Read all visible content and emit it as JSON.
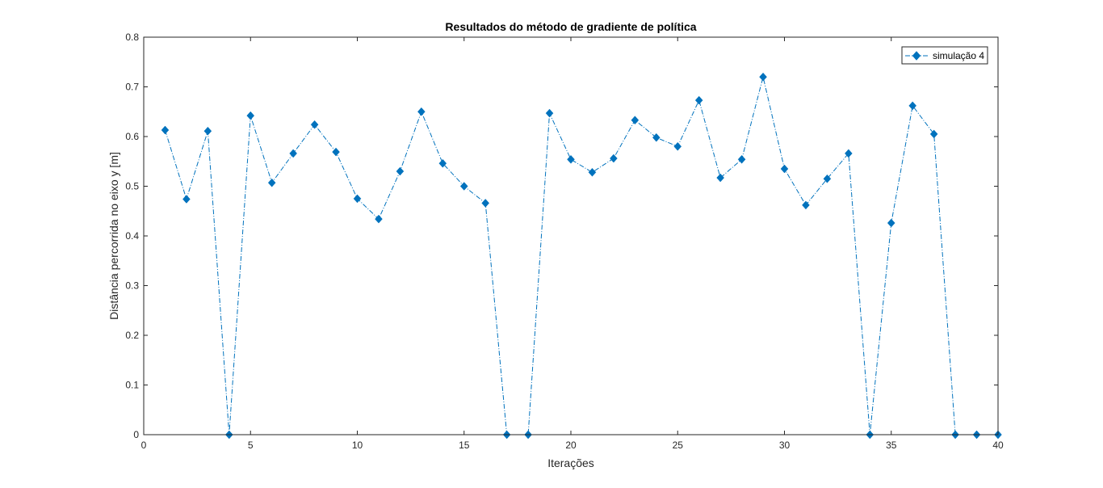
{
  "chart_data": {
    "type": "line",
    "title": "Resultados do método de gradiente de política",
    "xlabel": "Iterações",
    "ylabel": "Distância percorrida no eixo y [m]",
    "xlim": [
      0,
      40
    ],
    "ylim": [
      0,
      0.8
    ],
    "xticks": [
      0,
      5,
      10,
      15,
      20,
      25,
      30,
      35,
      40
    ],
    "yticks": [
      0,
      0.1,
      0.2,
      0.3,
      0.4,
      0.5,
      0.6,
      0.7,
      0.8
    ],
    "xtick_labels": [
      "0",
      "5",
      "10",
      "15",
      "20",
      "25",
      "30",
      "35",
      "40"
    ],
    "ytick_labels": [
      "0",
      "0.1",
      "0.2",
      "0.3",
      "0.4",
      "0.5",
      "0.6",
      "0.7",
      "0.8"
    ],
    "grid": false,
    "legend_position": "top-right",
    "series": [
      {
        "name": "simulação 4",
        "color": "#0072BD",
        "line_style": "dash-dot",
        "marker": "diamond",
        "x": [
          1,
          2,
          3,
          4,
          5,
          6,
          7,
          8,
          9,
          10,
          11,
          12,
          13,
          14,
          15,
          16,
          17,
          18,
          19,
          20,
          21,
          22,
          23,
          24,
          25,
          26,
          27,
          28,
          29,
          30,
          31,
          32,
          33,
          34,
          35,
          36,
          37,
          38,
          39,
          40
        ],
        "y": [
          0.613,
          0.474,
          0.611,
          0.0,
          0.642,
          0.507,
          0.566,
          0.624,
          0.569,
          0.475,
          0.434,
          0.53,
          0.65,
          0.546,
          0.5,
          0.466,
          0.0,
          0.0,
          0.647,
          0.554,
          0.528,
          0.556,
          0.633,
          0.598,
          0.58,
          0.673,
          0.517,
          0.554,
          0.72,
          0.535,
          0.462,
          0.515,
          0.566,
          0.0,
          0.426,
          0.662,
          0.605,
          0.0,
          0.0,
          0.0
        ]
      }
    ]
  }
}
